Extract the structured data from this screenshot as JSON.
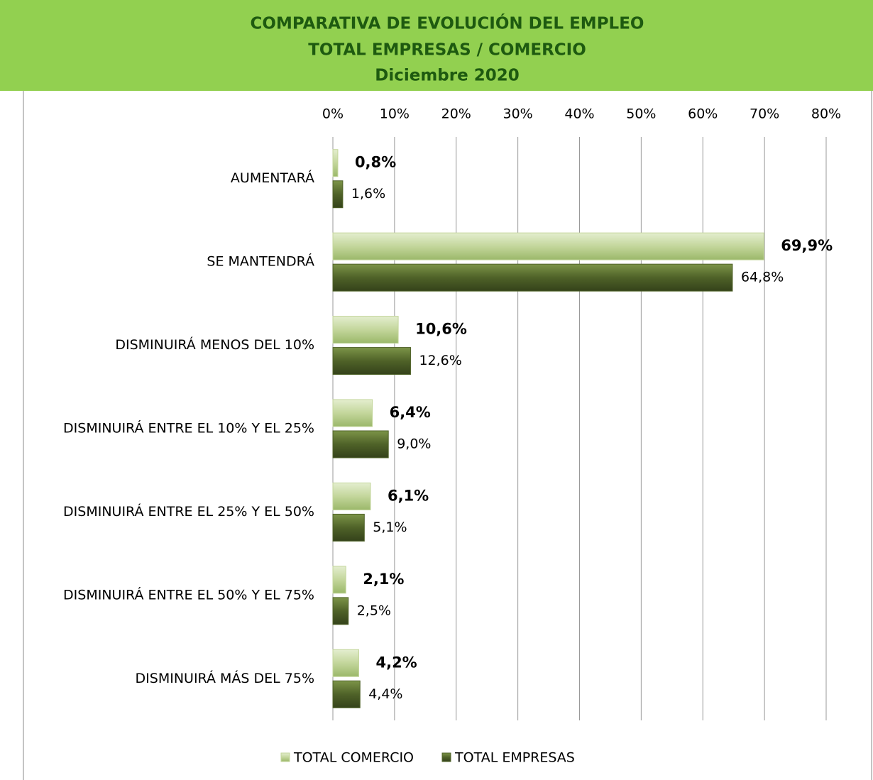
{
  "chart_data": {
    "type": "hbar",
    "title": [
      "COMPARATIVA DE EVOLUCIÓN DEL EMPLEO",
      "TOTAL EMPRESAS / COMERCIO",
      "Diciembre 2020"
    ],
    "categories": [
      "AUMENTARÁ",
      "SE MANTENDRÁ",
      "DISMINUIRÁ MENOS DEL 10%",
      "DISMINUIRÁ ENTRE EL 10% Y EL 25%",
      "DISMINUIRÁ ENTRE EL 25% Y EL 50%",
      "DISMINUIRÁ ENTRE EL 50% Y EL 75%",
      "DISMINUIRÁ MÁS DEL 75%"
    ],
    "series": [
      {
        "name": "TOTAL COMERCIO",
        "color": "#c3d69b",
        "values": [
          0.8,
          69.9,
          10.6,
          6.4,
          6.1,
          2.1,
          4.2
        ],
        "value_labels": [
          "0,8%",
          "69,9%",
          "10,6%",
          "6,4%",
          "6,1%",
          "2,1%",
          "4,2%"
        ]
      },
      {
        "name": "TOTAL EMPRESAS",
        "color": "#4f6228",
        "values": [
          1.6,
          64.8,
          12.6,
          9.0,
          5.1,
          2.5,
          4.4
        ],
        "value_labels": [
          "1,6%",
          "64,8%",
          "12,6%",
          "9,0%",
          "5,1%",
          "2,5%",
          "4,4%"
        ]
      }
    ],
    "xlim": [
      0,
      80
    ],
    "xticks": [
      {
        "value": 0,
        "label": "0%"
      },
      {
        "value": 10,
        "label": "10%"
      },
      {
        "value": 20,
        "label": "20%"
      },
      {
        "value": 30,
        "label": "30%"
      },
      {
        "value": 40,
        "label": "40%"
      },
      {
        "value": 50,
        "label": "50%"
      },
      {
        "value": 60,
        "label": "60%"
      },
      {
        "value": 70,
        "label": "70%"
      },
      {
        "value": 80,
        "label": "80%"
      }
    ],
    "grid": true
  }
}
